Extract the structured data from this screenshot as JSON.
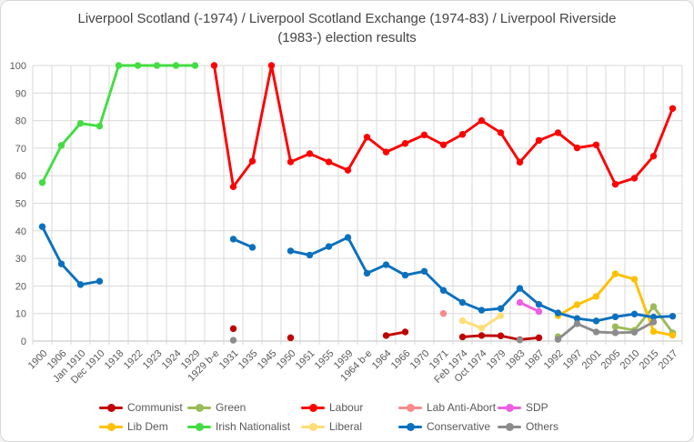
{
  "chart_data": {
    "type": "line",
    "title": "Liverpool Scotland (-1974) / Liverpool Scotland Exchange (1974-83) / Liverpool Riverside (1983-) election results",
    "xlabel": "",
    "ylabel": "",
    "ylim": [
      0,
      100
    ],
    "y_ticks": [
      0,
      10,
      20,
      30,
      40,
      50,
      60,
      70,
      80,
      90,
      100
    ],
    "grid": true,
    "legend_position": "bottom",
    "x_tick_rotation": 45,
    "categories": [
      "1900",
      "1906",
      "Jan 1910",
      "Dec 1910",
      "1918",
      "1922",
      "1923",
      "1924",
      "1929",
      "1929 b-e",
      "1931",
      "1935",
      "1945",
      "1950",
      "1951",
      "1955",
      "1959",
      "1964 b-e",
      "1964",
      "1966",
      "1970",
      "1971",
      "Feb 1974",
      "Oct 1974",
      "1979",
      "1983",
      "1987",
      "1992",
      "1997",
      "2001",
      "2005",
      "2010",
      "2015",
      "2017"
    ],
    "series": [
      {
        "name": "Communist",
        "color": "#c00000",
        "values": {
          "1931": 4.5,
          "1950": 1.2,
          "1964": 2.0,
          "1966": 3.3,
          "Feb 1974": 1.5,
          "Oct 1974": 2.0,
          "1979": 1.9,
          "1983": 0.5,
          "1987": 1.2
        }
      },
      {
        "name": "Green",
        "color": "#9bbb59",
        "values": {
          "1992": 1.6,
          "2005": 5.2,
          "2010": 3.9,
          "2015": 12.5,
          "2017": 3.0
        }
      },
      {
        "name": "Labour",
        "color": "#fe0000",
        "values": {
          "1929 b-e": 100,
          "1931": 56,
          "1935": 65.3,
          "1945": 100,
          "1950": 65,
          "1951": 68,
          "1955": 65,
          "1959": 62,
          "1964 b-e": 74,
          "1964": 68.6,
          "1966": 71.7,
          "1970": 74.8,
          "1971": 71.2,
          "Feb 1974": 75,
          "Oct 1974": 80,
          "1979": 75.6,
          "1983": 64.9,
          "1987": 72.8,
          "1992": 75.6,
          "1997": 70.1,
          "2001": 71.2,
          "2005": 56.9,
          "2010": 59.1,
          "2015": 67.1,
          "2017": 84.4
        }
      },
      {
        "name": "Lab Anti-Abort",
        "color": "#f88a8a",
        "values": {
          "1971": 10
        }
      },
      {
        "name": "SDP",
        "color": "#ee5fe2",
        "values": {
          "1983": 14,
          "1987": 10.7
        }
      },
      {
        "name": "Lib Dem",
        "color": "#ffc000",
        "values": {
          "1992": 9.2,
          "1997": 13.2,
          "2001": 16.2,
          "2005": 24.4,
          "2010": 22.4,
          "2015": 3.5,
          "2017": 2.1
        }
      },
      {
        "name": "Irish Nationalist",
        "color": "#43dd43",
        "values": {
          "1900": 57.5,
          "1906": 71,
          "Jan 1910": 79,
          "Dec 1910": 78,
          "1918": 100,
          "1922": 100,
          "1923": 100,
          "1924": 100,
          "1929": 100
        }
      },
      {
        "name": "Liberal",
        "color": "#ffdd77",
        "values": {
          "Feb 1974": 7.4,
          "Oct 1974": 4.7,
          "1979": 9.2
        }
      },
      {
        "name": "Conservative",
        "color": "#0b70be",
        "values": {
          "1900": 41.5,
          "1906": 28,
          "Jan 1910": 20.5,
          "Dec 1910": 21.7,
          "1931": 37,
          "1935": 34,
          "1950": 32.7,
          "1951": 31.2,
          "1955": 34.3,
          "1959": 37.6,
          "1964 b-e": 24.6,
          "1964": 27.7,
          "1966": 23.9,
          "1970": 25.3,
          "1971": 18.4,
          "Feb 1974": 14,
          "Oct 1974": 11.2,
          "1979": 11.8,
          "1983": 19.1,
          "1987": 13.3,
          "1992": 10.2,
          "1997": 8.2,
          "2001": 7.3,
          "2005": 8.8,
          "2010": 9.8,
          "2015": 8.7,
          "2017": 9.0
        }
      },
      {
        "name": "Others",
        "color": "#8c8c8c",
        "values": {
          "1931": 0.3,
          "1983": 0.4,
          "1992": 0.6,
          "1997": 6.3,
          "2001": 3.3,
          "2005": 3.0,
          "2010": 3.2,
          "2015": 6.9
        }
      }
    ]
  }
}
